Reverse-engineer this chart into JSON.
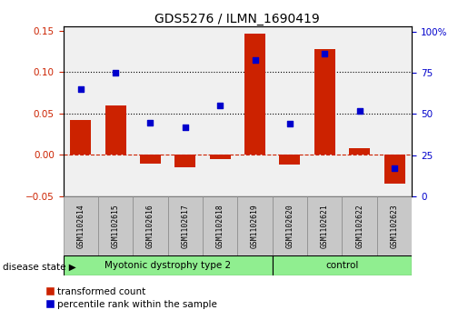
{
  "title": "GDS5276 / ILMN_1690419",
  "samples": [
    "GSM1102614",
    "GSM1102615",
    "GSM1102616",
    "GSM1102617",
    "GSM1102618",
    "GSM1102619",
    "GSM1102620",
    "GSM1102621",
    "GSM1102622",
    "GSM1102623"
  ],
  "transformed_count": [
    0.042,
    0.06,
    -0.01,
    -0.015,
    -0.005,
    0.146,
    -0.012,
    0.128,
    0.008,
    -0.035
  ],
  "percentile_rank": [
    65,
    75,
    45,
    42,
    55,
    83,
    44,
    87,
    52,
    17
  ],
  "disease_groups": [
    {
      "label": "Myotonic dystrophy type 2",
      "start": 0,
      "end": 5
    },
    {
      "label": "control",
      "start": 6,
      "end": 9
    }
  ],
  "ylim_left": [
    -0.05,
    0.155
  ],
  "ylim_right": [
    0,
    103.3
  ],
  "yticks_left": [
    -0.05,
    0.0,
    0.05,
    0.1,
    0.15
  ],
  "yticks_right": [
    0,
    25,
    50,
    75,
    100
  ],
  "bar_color": "#CC2200",
  "scatter_color": "#0000CC",
  "hline_color": "#CC2200",
  "dotline_vals": [
    0.05,
    0.1
  ],
  "green_color": "#90EE90",
  "gray_color": "#C8C8C8",
  "disease_state_label": "disease state"
}
